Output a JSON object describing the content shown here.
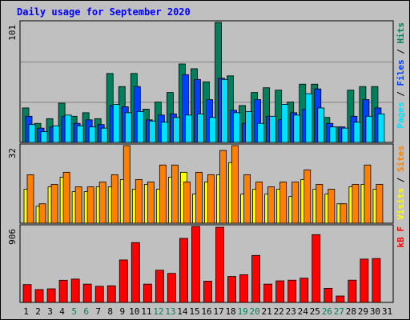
{
  "chart_data": [
    {
      "type": "bar",
      "panel": "hits-files-pages",
      "title": "Daily usage for September 2020",
      "ylabel": "Pages / Files / Hits",
      "ymax_label": "101",
      "ylim": [
        0,
        101
      ],
      "grid": true,
      "categories": [
        "1",
        "2",
        "3",
        "4",
        "5",
        "6",
        "7",
        "8",
        "9",
        "10",
        "11",
        "12",
        "13",
        "14",
        "15",
        "16",
        "17",
        "18",
        "19",
        "20",
        "21",
        "22",
        "23",
        "24",
        "25",
        "26",
        "27",
        "28",
        "29",
        "30",
        "31"
      ],
      "series": [
        {
          "name": "Hits",
          "color": "#00805c",
          "values": [
            29,
            16,
            20,
            33,
            22,
            25,
            20,
            58,
            47,
            58,
            28,
            34,
            42,
            66,
            62,
            51,
            101,
            56,
            31,
            42,
            46,
            44,
            34,
            49,
            49,
            21,
            13,
            44,
            47,
            47,
            0
          ]
        },
        {
          "name": "Files",
          "color": "#0040ff",
          "values": [
            22,
            12,
            13,
            22,
            16,
            19,
            15,
            31,
            30,
            47,
            19,
            23,
            24,
            57,
            53,
            36,
            54,
            27,
            16,
            36,
            22,
            19,
            25,
            28,
            45,
            16,
            13,
            22,
            36,
            29,
            0
          ]
        },
        {
          "name": "Pages",
          "color": "#00e0ff",
          "values": [
            15,
            9,
            14,
            23,
            14,
            13,
            12,
            32,
            25,
            26,
            18,
            17,
            21,
            23,
            24,
            21,
            53,
            25,
            26,
            16,
            22,
            32,
            23,
            41,
            29,
            13,
            12,
            17,
            22,
            24,
            0
          ]
        }
      ]
    },
    {
      "type": "bar",
      "panel": "visits-sites",
      "ylabel": "Visits / Sites",
      "ymax_label": "32",
      "ylim": [
        0,
        32
      ],
      "categories": [
        "1",
        "2",
        "3",
        "4",
        "5",
        "6",
        "7",
        "8",
        "9",
        "10",
        "11",
        "12",
        "13",
        "14",
        "15",
        "16",
        "17",
        "18",
        "19",
        "20",
        "21",
        "22",
        "23",
        "24",
        "25",
        "26",
        "27",
        "28",
        "29",
        "30",
        "31"
      ],
      "series": [
        {
          "name": "Visits",
          "color": "#ffff00",
          "values": [
            14,
            7,
            15,
            19,
            13,
            13,
            15,
            15,
            18,
            14,
            16,
            14,
            19,
            21,
            12,
            17,
            20,
            25,
            12,
            14,
            12,
            14,
            11,
            18,
            14,
            12,
            8,
            15,
            16,
            14,
            0
          ]
        },
        {
          "name": "Sites",
          "color": "#ff8000",
          "values": [
            20,
            8,
            16,
            21,
            15,
            15,
            17,
            20,
            32,
            18,
            17,
            24,
            24,
            17,
            21,
            20,
            30,
            32,
            20,
            17,
            15,
            17,
            17,
            22,
            16,
            14,
            8,
            16,
            24,
            16,
            0
          ]
        }
      ]
    },
    {
      "type": "bar",
      "panel": "kbytes",
      "ylabel": "kB F",
      "ymax_label": "906",
      "ylim": [
        0,
        906
      ],
      "categories": [
        "1",
        "2",
        "3",
        "4",
        "5",
        "6",
        "7",
        "8",
        "9",
        "10",
        "11",
        "12",
        "13",
        "14",
        "15",
        "16",
        "17",
        "18",
        "19",
        "20",
        "21",
        "22",
        "23",
        "24",
        "25",
        "26",
        "27",
        "28",
        "29",
        "30",
        "31"
      ],
      "series": [
        {
          "name": "kB F",
          "color": "#ff0000",
          "values": [
            213,
            153,
            162,
            264,
            278,
            218,
            192,
            198,
            506,
            713,
            218,
            384,
            346,
            763,
            906,
            253,
            896,
            309,
            330,
            560,
            218,
            257,
            265,
            289,
            808,
            168,
            76,
            265,
            516,
            523,
            0
          ]
        }
      ]
    }
  ],
  "weekend_days": [
    "5",
    "6",
    "12",
    "13",
    "19",
    "20",
    "26",
    "27"
  ],
  "colors": {
    "background": "#c0c0c0",
    "title_color": "#0000ff",
    "gridline": "#808080",
    "day_label": "#000000",
    "weekend_label": "#00805c"
  }
}
